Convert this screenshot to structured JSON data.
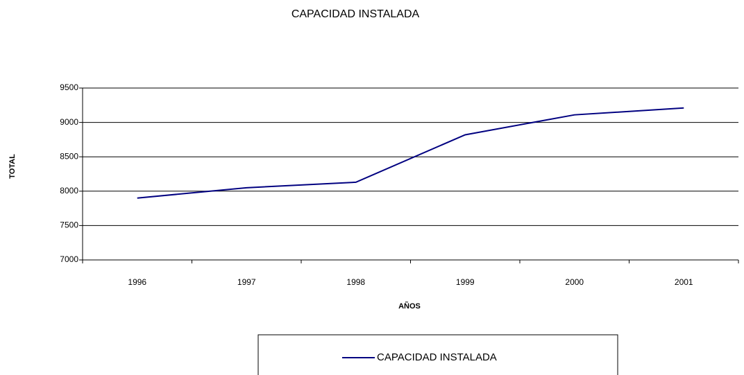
{
  "chart_data": {
    "type": "line",
    "title": "CAPACIDAD INSTALADA",
    "x_label": "AÑOS",
    "y_label": "TOTAL",
    "categories": [
      "1996",
      "1997",
      "1998",
      "1999",
      "2000",
      "2001"
    ],
    "series": [
      {
        "name": "CAPACIDAD INSTALADA",
        "color": "#000080",
        "values": [
          7900,
          8050,
          8130,
          8820,
          9110,
          9210
        ]
      }
    ],
    "ylim": [
      7000,
      9500
    ],
    "yticks": [
      7000,
      7500,
      8000,
      8500,
      9000,
      9500
    ],
    "grid": true,
    "legend": "bottom"
  }
}
